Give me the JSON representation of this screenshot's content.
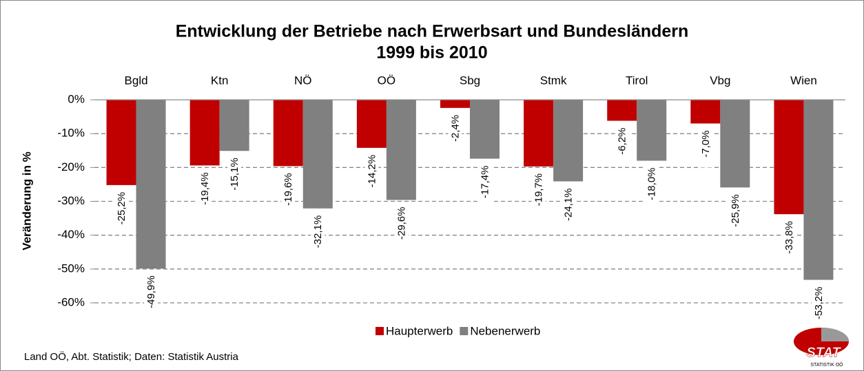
{
  "chart_data": {
    "type": "bar",
    "title": "Entwicklung der Betriebe nach Erwerbsart und Bundesländern",
    "subtitle": "1999 bis 2010",
    "y_label": "Veränderung in %",
    "categories": [
      "Bgld",
      "Ktn",
      "NÖ",
      "OÖ",
      "Sbg",
      "Stmk",
      "Tirol",
      "Vbg",
      "Wien"
    ],
    "series": [
      {
        "name": "Haupterwerb",
        "color": "#c00000",
        "values": [
          -25.2,
          -19.4,
          -19.6,
          -14.2,
          -2.4,
          -19.7,
          -6.2,
          -7.0,
          -33.8
        ],
        "value_labels": [
          "-25,2%",
          "-19,4%",
          "-19,6%",
          "-14,2%",
          "-2,4%",
          "-19,7%",
          "-6,2%",
          "-7,0%",
          "-33,8%"
        ]
      },
      {
        "name": "Nebenerwerb",
        "color": "#808080",
        "values": [
          -49.9,
          -15.1,
          -32.1,
          -29.6,
          -17.4,
          -24.1,
          -18.0,
          -25.9,
          -53.2
        ],
        "value_labels": [
          "-49,9%",
          "-15,1%",
          "-32,1%",
          "-29,6%",
          "-17,4%",
          "-24,1%",
          "-18,0%",
          "-25,9%",
          "-53,2%"
        ]
      }
    ],
    "ylim": [
      -60,
      0
    ],
    "yticks": [
      {
        "value": 0,
        "label": "0%"
      },
      {
        "value": -10,
        "label": "-10%"
      },
      {
        "value": -20,
        "label": "-20%"
      },
      {
        "value": -30,
        "label": "-30%"
      },
      {
        "value": -40,
        "label": "-40%"
      },
      {
        "value": -50,
        "label": "-50%"
      },
      {
        "value": -60,
        "label": "-60%"
      }
    ],
    "grid": true,
    "legend": "bottom",
    "source": "Land OÖ, Abt. Statistik; Daten: Statistik Austria",
    "logo": "STAT",
    "logo_sub": "STATISTIK OÖ"
  }
}
